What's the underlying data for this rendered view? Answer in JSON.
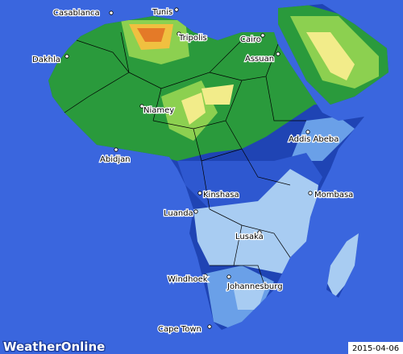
{
  "map": {
    "cities": [
      "Casablanca",
      "Tunis",
      "Tripolis",
      "Cairo",
      "Assuan",
      "Dakhla",
      "Niamey",
      "Addis Abeba",
      "Abidjan",
      "Kinshasa",
      "Mombasa",
      "Luanda",
      "Lusaka",
      "Windhoek",
      "Johannesburg",
      "Cape Town"
    ],
    "logo": "WeatherOnline",
    "date": "2015-04-06"
  }
}
